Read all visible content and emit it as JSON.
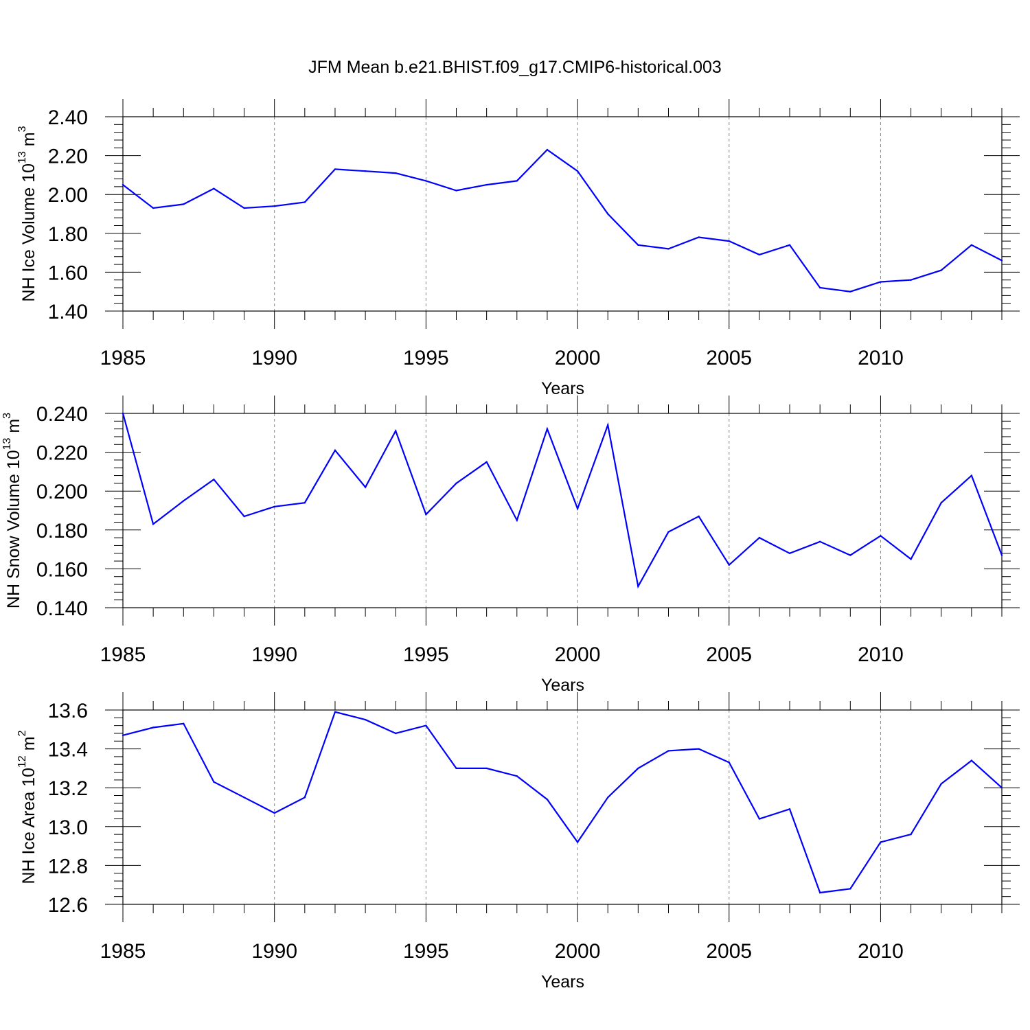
{
  "title": "JFM Mean b.e21.BHIST.f09_g17.CMIP6-historical.003",
  "colors": {
    "line": "#0000ff",
    "axes": "#000000",
    "grid": "#888888"
  },
  "chart_data": [
    {
      "type": "line",
      "ylabel": {
        "prefix": "NH Ice Volume 10",
        "exp": "13",
        "unit": " m",
        "unit_exp": "3"
      },
      "xlabel": "Years",
      "xlim": [
        1985,
        2014
      ],
      "ylim": [
        1.4,
        2.4
      ],
      "xticks": [
        1985,
        1990,
        1995,
        2000,
        2005,
        2010
      ],
      "yticks": [
        "1.40",
        "1.60",
        "1.80",
        "2.00",
        "2.20",
        "2.40"
      ],
      "grid_x": "dashed at major x ticks",
      "x": [
        1985,
        1986,
        1987,
        1988,
        1989,
        1990,
        1991,
        1992,
        1993,
        1994,
        1995,
        1996,
        1997,
        1998,
        1999,
        2000,
        2001,
        2002,
        2003,
        2004,
        2005,
        2006,
        2007,
        2008,
        2009,
        2010,
        2011,
        2012,
        2013,
        2014
      ],
      "values": [
        2.05,
        1.93,
        1.95,
        2.03,
        1.93,
        1.94,
        1.96,
        2.13,
        2.12,
        2.11,
        2.07,
        2.02,
        2.05,
        2.07,
        2.23,
        2.12,
        1.9,
        1.74,
        1.72,
        1.78,
        1.76,
        1.69,
        1.74,
        1.52,
        1.5,
        1.55,
        1.56,
        1.61,
        1.74,
        1.66
      ]
    },
    {
      "type": "line",
      "ylabel": {
        "prefix": "NH Snow Volume 10",
        "exp": "13",
        "unit": " m",
        "unit_exp": "3"
      },
      "xlabel": "Years",
      "xlim": [
        1985,
        2014
      ],
      "ylim": [
        0.14,
        0.24
      ],
      "xticks": [
        1985,
        1990,
        1995,
        2000,
        2005,
        2010
      ],
      "yticks": [
        "0.140",
        "0.160",
        "0.180",
        "0.200",
        "0.220",
        "0.240"
      ],
      "grid_x": "dashed at major x ticks",
      "x": [
        1985,
        1986,
        1987,
        1988,
        1989,
        1990,
        1991,
        1992,
        1993,
        1994,
        1995,
        1996,
        1997,
        1998,
        1999,
        2000,
        2001,
        2002,
        2003,
        2004,
        2005,
        2006,
        2007,
        2008,
        2009,
        2010,
        2011,
        2012,
        2013,
        2014
      ],
      "values": [
        0.24,
        0.183,
        0.195,
        0.206,
        0.187,
        0.192,
        0.194,
        0.221,
        0.202,
        0.231,
        0.188,
        0.204,
        0.215,
        0.185,
        0.232,
        0.191,
        0.234,
        0.151,
        0.179,
        0.187,
        0.162,
        0.176,
        0.168,
        0.174,
        0.167,
        0.177,
        0.165,
        0.194,
        0.208,
        0.167
      ]
    },
    {
      "type": "line",
      "ylabel": {
        "prefix": "NH Ice Area 10",
        "exp": "12",
        "unit": " m",
        "unit_exp": "2"
      },
      "xlabel": "Years",
      "xlim": [
        1985,
        2014
      ],
      "ylim": [
        12.6,
        13.6
      ],
      "xticks": [
        1985,
        1990,
        1995,
        2000,
        2005,
        2010
      ],
      "yticks": [
        "12.6",
        "12.8",
        "13.0",
        "13.2",
        "13.4",
        "13.6"
      ],
      "grid_x": "dashed at major x ticks",
      "x": [
        1985,
        1986,
        1987,
        1988,
        1989,
        1990,
        1991,
        1992,
        1993,
        1994,
        1995,
        1996,
        1997,
        1998,
        1999,
        2000,
        2001,
        2002,
        2003,
        2004,
        2005,
        2006,
        2007,
        2008,
        2009,
        2010,
        2011,
        2012,
        2013,
        2014
      ],
      "values": [
        13.47,
        13.51,
        13.53,
        13.23,
        13.15,
        13.07,
        13.15,
        13.59,
        13.55,
        13.48,
        13.52,
        13.3,
        13.3,
        13.26,
        13.14,
        12.92,
        13.15,
        13.3,
        13.39,
        13.4,
        13.33,
        13.04,
        13.09,
        12.66,
        12.68,
        12.92,
        12.96,
        13.22,
        13.34,
        13.2
      ]
    }
  ]
}
